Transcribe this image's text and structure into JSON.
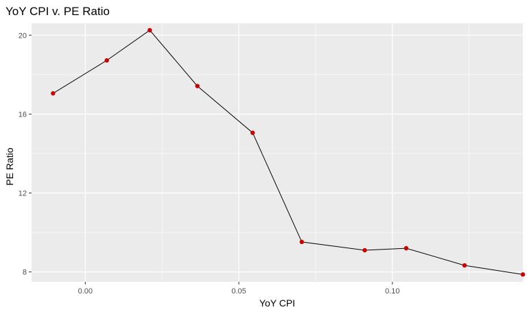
{
  "chart_data": {
    "type": "line",
    "title": "YoY CPI v. PE Ratio",
    "xlabel": "YoY CPI",
    "ylabel": "PE Ratio",
    "xlim": [
      -0.0175,
      0.1425
    ],
    "ylim": [
      7.5,
      20.6
    ],
    "x_ticks": [
      0.0,
      0.05,
      0.1
    ],
    "x_tick_labels": [
      "0.00",
      "0.05",
      "0.10"
    ],
    "y_ticks": [
      8,
      12,
      16,
      20
    ],
    "y_tick_labels": [
      "8",
      "12",
      "16",
      "20"
    ],
    "grid": true,
    "legend": "none",
    "colors": {
      "panel_background": "#ebebeb",
      "grid_major": "#ffffff",
      "line": "#000000",
      "points": "#cc0000"
    },
    "series": [
      {
        "x": [
          -0.0105,
          0.007,
          0.021,
          0.0365,
          0.0545,
          0.0705,
          0.091,
          0.1045,
          0.1235,
          0.1425
        ],
        "y": [
          17.05,
          18.72,
          20.25,
          17.42,
          15.05,
          9.52,
          9.1,
          9.2,
          8.33,
          7.87
        ]
      }
    ]
  }
}
